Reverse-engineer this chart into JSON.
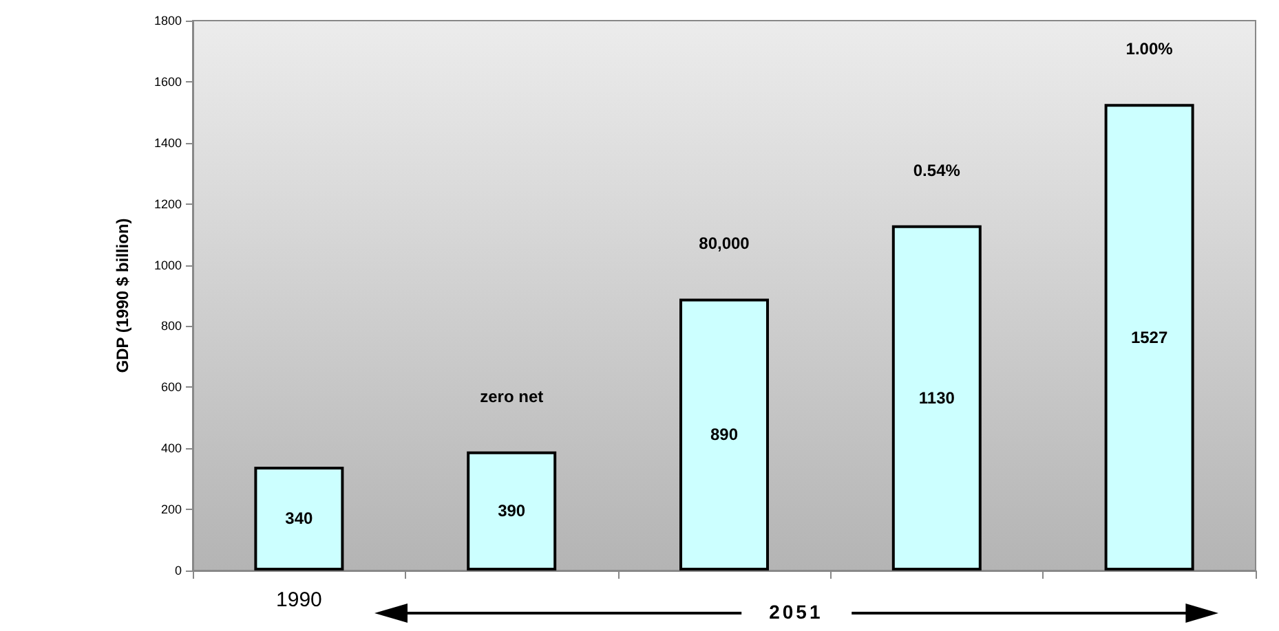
{
  "chart_data": {
    "type": "bar",
    "ylabel": "GDP (1990 $ billion)",
    "categories": [
      "1990",
      null,
      null,
      null,
      null
    ],
    "values": [
      340,
      390,
      890,
      1130,
      1527
    ],
    "color": "#ccffff",
    "data_labels": true,
    "ylim": [
      0,
      1800
    ],
    "yticks": [
      0,
      200,
      400,
      600,
      800,
      1000,
      1200,
      1400,
      1600,
      1800
    ],
    "grid": false,
    "annotations": [
      "zero net",
      "80,000",
      "0.54%",
      "1.00%",
      "2051"
    ]
  }
}
